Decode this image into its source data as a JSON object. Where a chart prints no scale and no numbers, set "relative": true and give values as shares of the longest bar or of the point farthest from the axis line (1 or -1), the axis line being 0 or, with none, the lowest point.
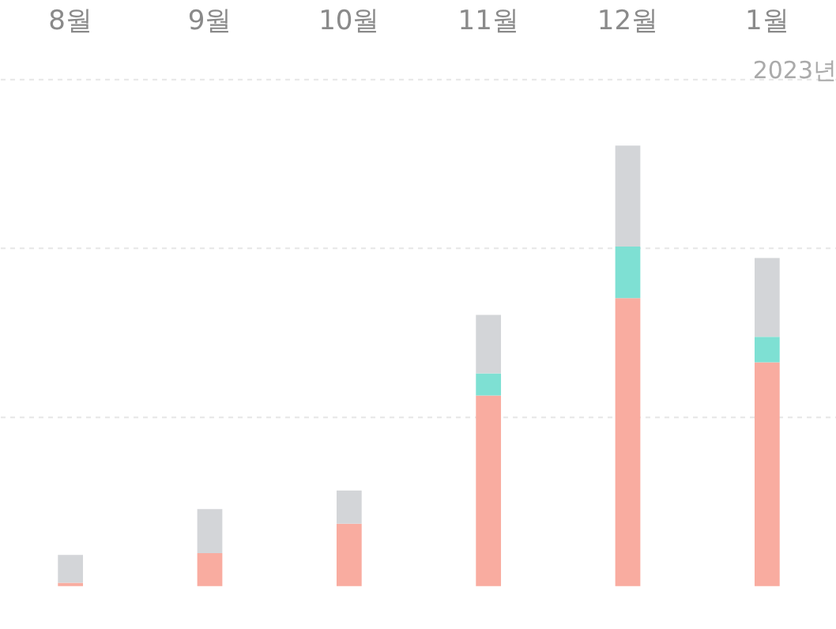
{
  "chart_data": {
    "type": "bar",
    "stacked": true,
    "relative": true,
    "categories": [
      "8월",
      "9월",
      "10월",
      "11월",
      "12월",
      "1월"
    ],
    "ref_lines": [
      {
        "axis": "y",
        "value": 0.383,
        "color": "#e6e6e6",
        "line_style": "dashed"
      },
      {
        "axis": "y",
        "value": 0.767,
        "color": "#e6e6e6",
        "line_style": "dashed"
      },
      {
        "axis": "y",
        "value": 1.15,
        "color": "#e6e6e6",
        "line_style": "dashed"
      }
    ],
    "series": [
      {
        "color": "#f9aca0",
        "values": [
          0.008,
          0.075,
          0.142,
          0.433,
          0.654,
          0.508
        ]
      },
      {
        "color": "#7ee0d3",
        "values": [
          0,
          0,
          0,
          0.05,
          0.117,
          0.058
        ]
      },
      {
        "color": "#d3d5d8",
        "values": [
          0.063,
          0.1,
          0.075,
          0.133,
          0.229,
          0.179
        ]
      }
    ],
    "annotations": [
      "2023년"
    ]
  }
}
